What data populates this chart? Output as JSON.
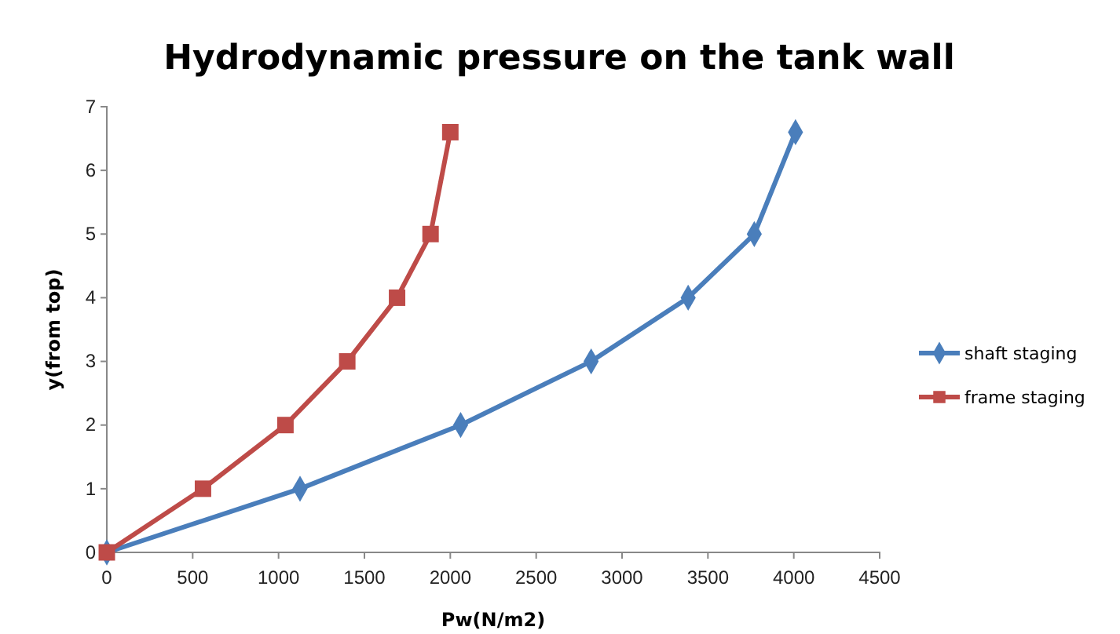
{
  "chart_data": {
    "type": "line",
    "title": "Hydrodynamic pressure on the tank wall",
    "xlabel": "Pw(N/m2)",
    "ylabel": "y(from top)",
    "xlim": [
      0,
      4500
    ],
    "xticks": [
      0,
      500,
      1000,
      1500,
      2000,
      2500,
      3000,
      3500,
      4000,
      4500
    ],
    "ylim": [
      0,
      7
    ],
    "yticks": [
      0,
      1,
      2,
      3,
      4,
      5,
      6,
      7
    ],
    "grid": false,
    "legend": "right",
    "series": [
      {
        "name": "shaft staging",
        "color": "#4a7ebb",
        "marker": "diamond",
        "x": [
          0,
          1125,
          2060,
          2820,
          3385,
          3770,
          4010
        ],
        "values": [
          0,
          1,
          2,
          3,
          4,
          5,
          6.6
        ]
      },
      {
        "name": "frame staging",
        "color": "#be4b48",
        "marker": "square",
        "x": [
          0,
          560,
          1040,
          1400,
          1690,
          1885,
          2000
        ],
        "values": [
          0,
          1,
          2,
          3,
          4,
          5,
          6.6
        ]
      }
    ]
  }
}
